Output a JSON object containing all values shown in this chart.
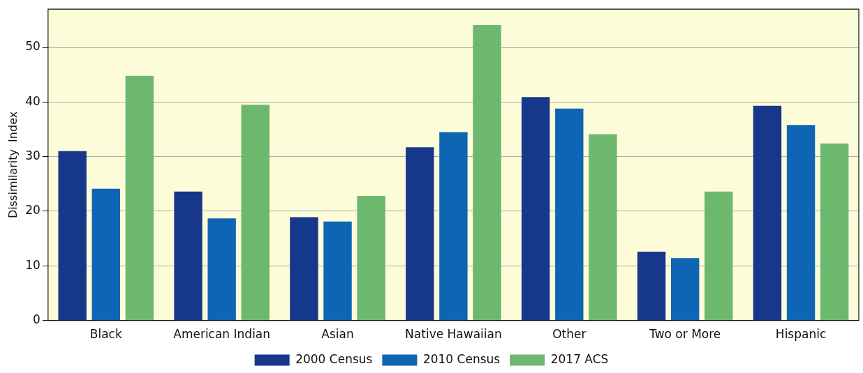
{
  "chart_data": {
    "type": "bar",
    "ylabel": "Dissimilarity  Index",
    "categories": [
      "Black",
      "American Indian",
      "Asian",
      "Native Hawaiian",
      "Other",
      "Two or More",
      "Hispanic"
    ],
    "series": [
      {
        "name": "2000 Census",
        "color": "#17378a",
        "values": [
          31.0,
          23.6,
          18.9,
          31.7,
          40.9,
          12.6,
          39.3
        ]
      },
      {
        "name": "2010 Census",
        "color": "#0d65b3",
        "values": [
          24.1,
          18.7,
          18.1,
          34.5,
          38.8,
          11.4,
          35.8
        ]
      },
      {
        "name": "2017 ACS",
        "color": "#6db86f",
        "values": [
          44.8,
          39.5,
          22.8,
          54.1,
          34.1,
          23.6,
          32.4
        ]
      }
    ],
    "ylim": [
      0,
      57
    ],
    "yticks": [
      0,
      10,
      20,
      30,
      40,
      50
    ],
    "grid": "y",
    "legend": "bottom"
  }
}
